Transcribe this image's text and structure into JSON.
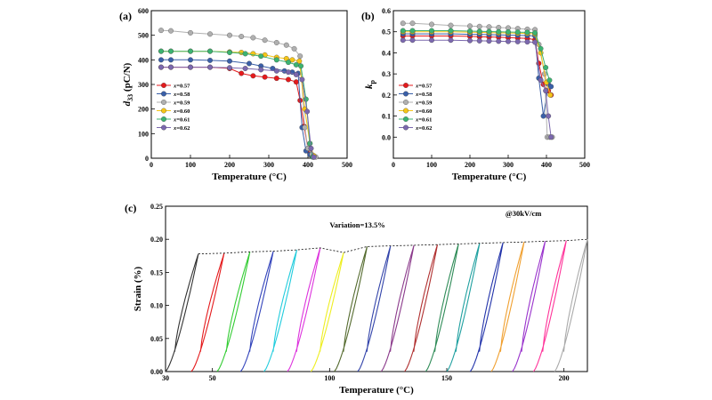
{
  "chart_data": [
    {
      "id": "a",
      "type": "line",
      "panel_label": "(a)",
      "xlabel": "Temperature (°C)",
      "ylabel_main": "d",
      "ylabel_sub": "33",
      "ylabel_rest": " (pC/N)",
      "xlim": [
        0,
        500
      ],
      "ylim": [
        0,
        600
      ],
      "xticks": [
        0,
        100,
        200,
        300,
        400,
        500
      ],
      "yticks": [
        0,
        100,
        200,
        300,
        400,
        500,
        600
      ],
      "legend_position": "left-middle",
      "series": [
        {
          "name": "x=0.57",
          "var": "x",
          "rest": "=0.57",
          "color": "#e41a1c",
          "x": [
            25,
            50,
            100,
            150,
            200,
            230,
            260,
            290,
            320,
            350,
            370,
            380,
            390,
            400,
            405,
            410,
            415
          ],
          "y": [
            370,
            370,
            370,
            370,
            365,
            345,
            335,
            330,
            325,
            320,
            310,
            235,
            130,
            40,
            20,
            10,
            5
          ]
        },
        {
          "name": "x=0.58",
          "var": "x",
          "rest": "=0.58",
          "color": "#3a5fa8",
          "x": [
            25,
            50,
            100,
            150,
            200,
            250,
            280,
            310,
            340,
            360,
            375,
            385,
            395,
            405,
            410,
            415
          ],
          "y": [
            400,
            400,
            400,
            398,
            395,
            385,
            375,
            365,
            355,
            350,
            345,
            125,
            30,
            15,
            10,
            5
          ]
        },
        {
          "name": "x=0.59",
          "var": "x",
          "rest": "=0.59",
          "color": "#b0b0b0",
          "x": [
            25,
            50,
            100,
            150,
            200,
            230,
            260,
            290,
            320,
            345,
            365,
            380,
            392,
            400,
            410,
            420
          ],
          "y": [
            520,
            518,
            510,
            505,
            500,
            495,
            490,
            480,
            470,
            460,
            445,
            415,
            125,
            40,
            15,
            5
          ]
        },
        {
          "name": "x=0.60",
          "var": "x",
          "rest": "=0.60",
          "color": "#f5c518",
          "x": [
            25,
            50,
            100,
            150,
            200,
            230,
            260,
            290,
            320,
            345,
            360,
            378,
            392,
            405,
            415
          ],
          "y": [
            435,
            435,
            435,
            435,
            432,
            430,
            425,
            420,
            410,
            405,
            400,
            395,
            200,
            60,
            10
          ]
        },
        {
          "name": "x=0.61",
          "var": "x",
          "rest": "=0.61",
          "color": "#3cb371",
          "x": [
            25,
            50,
            100,
            150,
            200,
            240,
            280,
            320,
            350,
            370,
            382,
            395,
            405,
            412
          ],
          "y": [
            435,
            435,
            435,
            435,
            430,
            425,
            415,
            400,
            390,
            380,
            375,
            240,
            60,
            5
          ]
        },
        {
          "name": "x=0.62",
          "var": "x",
          "rest": "=0.62",
          "color": "#7b68ae",
          "x": [
            25,
            50,
            100,
            150,
            200,
            240,
            280,
            320,
            350,
            370,
            385,
            398,
            408,
            415
          ],
          "y": [
            370,
            370,
            370,
            370,
            368,
            365,
            360,
            355,
            350,
            340,
            320,
            190,
            40,
            5
          ]
        }
      ]
    },
    {
      "id": "b",
      "type": "line",
      "panel_label": "(b)",
      "xlabel": "Temperature (°C)",
      "ylabel_main": "k",
      "ylabel_sub": "p",
      "xlim": [
        0,
        500
      ],
      "ylim": [
        -0.1,
        0.6
      ],
      "xticks": [
        0,
        100,
        200,
        300,
        400,
        500
      ],
      "yticks": [
        0.0,
        0.1,
        0.2,
        0.3,
        0.4,
        0.5,
        0.6
      ],
      "ytick_labels": [
        "0.0",
        "0.1",
        "0.2",
        "0.3",
        "0.4",
        "0.5",
        "0.6"
      ],
      "legend_position": "left-middle",
      "series": [
        {
          "name": "x=0.57",
          "var": "x",
          "rest": "=0.57",
          "color": "#e41a1c",
          "x": [
            25,
            50,
            100,
            150,
            200,
            225,
            250,
            275,
            300,
            325,
            350,
            370,
            380,
            392,
            405,
            412
          ],
          "y": [
            0.48,
            0.48,
            0.48,
            0.48,
            0.478,
            0.476,
            0.475,
            0.474,
            0.472,
            0.47,
            0.468,
            0.462,
            0.35,
            0.25,
            0.22,
            0.2
          ]
        },
        {
          "name": "x=0.58",
          "var": "x",
          "rest": "=0.58",
          "color": "#3a5fa8",
          "x": [
            25,
            50,
            100,
            150,
            200,
            225,
            250,
            275,
            300,
            325,
            350,
            370,
            380,
            392,
            405,
            412
          ],
          "y": [
            0.49,
            0.49,
            0.49,
            0.49,
            0.488,
            0.487,
            0.486,
            0.485,
            0.484,
            0.483,
            0.482,
            0.48,
            0.28,
            0.1,
            0.25,
            0.24
          ]
        },
        {
          "name": "x=0.59",
          "var": "x",
          "rest": "=0.59",
          "color": "#b0b0b0",
          "x": [
            25,
            50,
            100,
            150,
            200,
            225,
            250,
            275,
            300,
            325,
            350,
            370,
            380,
            395,
            402,
            408,
            415
          ],
          "y": [
            0.54,
            0.54,
            0.535,
            0.53,
            0.527,
            0.525,
            0.523,
            0.52,
            0.518,
            0.515,
            0.512,
            0.51,
            0.44,
            0.3,
            0.0,
            0.0,
            0.0
          ]
        },
        {
          "name": "x=0.60",
          "var": "x",
          "rest": "=0.60",
          "color": "#f5c518",
          "x": [
            25,
            50,
            100,
            150,
            200,
            225,
            250,
            275,
            300,
            325,
            350,
            370,
            385,
            400,
            410
          ],
          "y": [
            0.5,
            0.5,
            0.5,
            0.5,
            0.498,
            0.497,
            0.496,
            0.495,
            0.494,
            0.493,
            0.492,
            0.49,
            0.4,
            0.26,
            0.2
          ]
        },
        {
          "name": "x=0.61",
          "var": "x",
          "rest": "=0.61",
          "color": "#3cb371",
          "x": [
            25,
            50,
            100,
            150,
            200,
            225,
            250,
            275,
            300,
            325,
            350,
            370,
            385,
            398,
            408
          ],
          "y": [
            0.505,
            0.505,
            0.505,
            0.505,
            0.503,
            0.502,
            0.501,
            0.5,
            0.499,
            0.498,
            0.497,
            0.495,
            0.42,
            0.33,
            0.27
          ]
        },
        {
          "name": "x=0.62",
          "var": "x",
          "rest": "=0.62",
          "color": "#7b68ae",
          "x": [
            25,
            50,
            100,
            150,
            200,
            225,
            250,
            275,
            300,
            325,
            350,
            370,
            385,
            398,
            405,
            412
          ],
          "y": [
            0.46,
            0.46,
            0.46,
            0.46,
            0.458,
            0.457,
            0.456,
            0.455,
            0.454,
            0.453,
            0.452,
            0.45,
            0.27,
            0.22,
            0.1,
            0.0
          ]
        }
      ]
    },
    {
      "id": "c",
      "type": "line",
      "panel_label": "(c)",
      "xlabel": "Temperature (°C)",
      "ylabel": "Strain (%)",
      "xlim": [
        30,
        210
      ],
      "ylim": [
        0,
        0.25
      ],
      "xticks": [
        30,
        50,
        100,
        150,
        200
      ],
      "yticks": [
        0.0,
        0.05,
        0.1,
        0.15,
        0.2,
        0.25
      ],
      "ytick_labels": [
        "0.00",
        "0.05",
        "0.10",
        "0.15",
        "0.20",
        "0.25"
      ],
      "annotations": {
        "variation": "Variation=13.5%",
        "field": "@30kV/cm"
      },
      "loops": [
        {
          "x0": 30,
          "x1": 44,
          "peak": 0.178,
          "color": "#333333"
        },
        {
          "x0": 41,
          "x1": 55,
          "peak": 0.179,
          "color": "#e41a1c"
        },
        {
          "x0": 52,
          "x1": 66,
          "peak": 0.181,
          "color": "#33cc33"
        },
        {
          "x0": 62,
          "x1": 76,
          "peak": 0.182,
          "color": "#3344bb"
        },
        {
          "x0": 72,
          "x1": 86,
          "peak": 0.184,
          "color": "#22ccdd"
        },
        {
          "x0": 82,
          "x1": 96,
          "peak": 0.187,
          "color": "#dd33dd"
        },
        {
          "x0": 92,
          "x1": 106,
          "peak": 0.18,
          "color": "#eeee22"
        },
        {
          "x0": 102,
          "x1": 116,
          "peak": 0.189,
          "color": "#556b2f"
        },
        {
          "x0": 112,
          "x1": 126,
          "peak": 0.19,
          "color": "#3344aa"
        },
        {
          "x0": 122,
          "x1": 136,
          "peak": 0.191,
          "color": "#8b3a8b"
        },
        {
          "x0": 132,
          "x1": 146,
          "peak": 0.192,
          "color": "#b03030"
        },
        {
          "x0": 141,
          "x1": 155,
          "peak": 0.193,
          "color": "#2e8b57"
        },
        {
          "x0": 150,
          "x1": 164,
          "peak": 0.194,
          "color": "#20a0a0"
        },
        {
          "x0": 160,
          "x1": 174,
          "peak": 0.195,
          "color": "#2233aa"
        },
        {
          "x0": 169,
          "x1": 183,
          "peak": 0.196,
          "color": "#f0a030"
        },
        {
          "x0": 178,
          "x1": 192,
          "peak": 0.197,
          "color": "#9933cc"
        },
        {
          "x0": 187,
          "x1": 201,
          "peak": 0.198,
          "color": "#ff3399"
        },
        {
          "x0": 196,
          "x1": 210,
          "peak": 0.2,
          "color": "#aaaaaa"
        }
      ]
    }
  ]
}
